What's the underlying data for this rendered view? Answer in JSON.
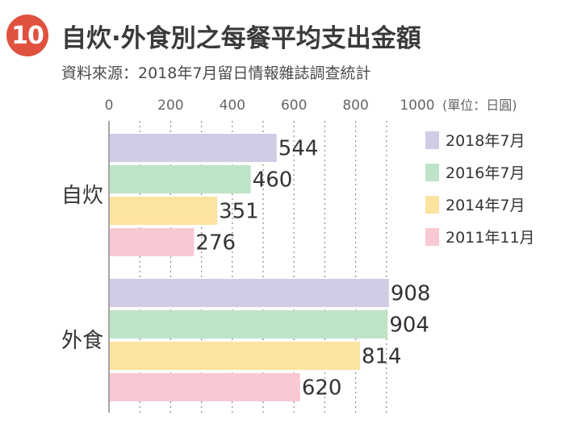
{
  "header": {
    "badge": "10",
    "title": "自炊·外食別之每餐平均支出金額",
    "subtitle": "資料來源：2018年7月留日情報雜誌調查統計"
  },
  "chart_data": {
    "type": "bar",
    "orientation": "horizontal",
    "title": "自炊·外食別之每餐平均支出金額",
    "unit_label": "(單位：日圓)",
    "categories": [
      "自炊",
      "外食"
    ],
    "x_ticks": [
      0,
      200,
      400,
      600,
      800,
      1000
    ],
    "xlim": [
      0,
      1000
    ],
    "grid": true,
    "legend_position": "right",
    "series": [
      {
        "name": "2018年7月",
        "color": "#d2cbe6",
        "values": [
          544,
          908
        ]
      },
      {
        "name": "2016年7月",
        "color": "#bfe3c7",
        "values": [
          460,
          904
        ]
      },
      {
        "name": "2014年7月",
        "color": "#fde3a0",
        "values": [
          351,
          814
        ]
      },
      {
        "name": "2011年11月",
        "color": "#f8c9d3",
        "values": [
          276,
          620
        ]
      }
    ]
  }
}
